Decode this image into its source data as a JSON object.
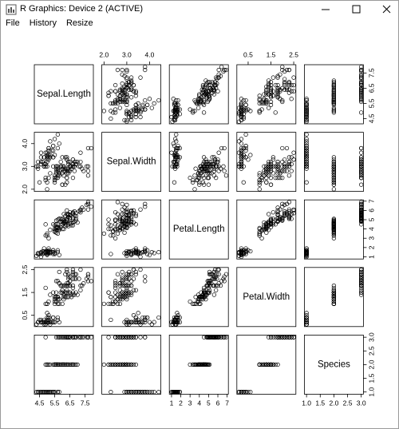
{
  "window": {
    "title": "R Graphics: Device 2 (ACTIVE)",
    "menu": [
      "File",
      "History",
      "Resize"
    ]
  },
  "chart_data": {
    "type": "scatter-matrix",
    "color": "#000000",
    "variables": [
      {
        "name": "Sepal.Length",
        "lim": [
          4.156,
          8.044
        ],
        "ticks": [
          4.5,
          5.5,
          6.5,
          7.5
        ],
        "values": [
          5.1,
          4.9,
          4.7,
          4.6,
          5.0,
          5.4,
          4.6,
          5.0,
          4.4,
          4.9,
          5.4,
          4.8,
          4.8,
          4.3,
          5.8,
          5.7,
          5.4,
          5.1,
          5.7,
          5.1,
          5.4,
          5.1,
          4.6,
          5.1,
          4.8,
          5.0,
          5.0,
          5.2,
          5.2,
          4.7,
          4.8,
          5.4,
          5.2,
          5.5,
          4.9,
          5.0,
          5.5,
          4.9,
          4.4,
          5.1,
          5.0,
          4.5,
          4.4,
          5.0,
          5.1,
          4.8,
          5.1,
          4.6,
          5.3,
          5.0,
          7.0,
          6.4,
          6.9,
          5.5,
          6.5,
          5.7,
          6.3,
          4.9,
          6.6,
          5.2,
          5.0,
          5.9,
          6.0,
          6.1,
          5.6,
          6.7,
          5.6,
          5.8,
          6.2,
          5.6,
          5.9,
          6.1,
          6.3,
          6.1,
          6.4,
          6.6,
          6.8,
          6.7,
          6.0,
          5.7,
          5.5,
          5.5,
          5.8,
          6.0,
          5.4,
          6.0,
          6.7,
          6.3,
          5.6,
          5.5,
          5.5,
          6.1,
          5.8,
          5.0,
          5.6,
          5.7,
          5.7,
          6.2,
          5.1,
          5.7,
          6.3,
          5.8,
          7.1,
          6.3,
          6.5,
          7.6,
          4.9,
          7.3,
          6.7,
          7.2,
          6.5,
          6.4,
          6.8,
          5.7,
          5.8,
          6.4,
          6.5,
          7.7,
          7.7,
          6.0,
          6.9,
          5.6,
          7.7,
          6.3,
          6.7,
          7.2,
          6.2,
          6.1,
          6.4,
          7.2,
          7.4,
          7.9,
          6.4,
          6.3,
          6.1,
          7.7,
          6.3,
          6.4,
          6.0,
          6.9,
          6.7,
          6.9,
          5.8,
          6.8,
          6.7,
          6.7,
          6.3,
          6.5,
          6.2,
          5.9
        ]
      },
      {
        "name": "Sepal.Width",
        "lim": [
          1.904,
          4.496
        ],
        "ticks": [
          {
            "value": 2,
            "label": "2.0"
          },
          {
            "value": 3,
            "label": "3.0"
          },
          {
            "value": 4,
            "label": "4.0"
          }
        ],
        "values": [
          3.5,
          3.0,
          3.2,
          3.1,
          3.6,
          3.9,
          3.4,
          3.4,
          2.9,
          3.1,
          3.7,
          3.4,
          3.0,
          3.0,
          4.0,
          4.4,
          3.9,
          3.5,
          3.8,
          3.8,
          3.4,
          3.7,
          3.6,
          3.3,
          3.4,
          3.0,
          3.4,
          3.5,
          3.4,
          3.2,
          3.1,
          3.4,
          4.1,
          4.2,
          3.1,
          3.2,
          3.5,
          3.6,
          3.0,
          3.4,
          3.5,
          2.3,
          3.2,
          3.5,
          3.8,
          3.0,
          3.8,
          3.2,
          3.7,
          3.3,
          3.2,
          3.2,
          3.1,
          2.3,
          2.8,
          2.8,
          3.3,
          2.4,
          2.9,
          2.7,
          2.0,
          3.0,
          2.2,
          2.9,
          2.9,
          3.1,
          3.0,
          2.7,
          2.2,
          2.5,
          3.2,
          2.8,
          2.5,
          2.8,
          2.9,
          3.0,
          2.8,
          3.0,
          2.9,
          2.6,
          2.4,
          2.4,
          2.7,
          2.7,
          3.0,
          3.4,
          3.1,
          2.3,
          3.0,
          2.5,
          2.6,
          3.0,
          2.6,
          2.3,
          2.7,
          3.0,
          2.9,
          2.9,
          2.5,
          2.8,
          3.3,
          2.7,
          3.0,
          2.9,
          3.0,
          3.0,
          2.5,
          2.9,
          2.5,
          3.6,
          3.2,
          2.7,
          3.0,
          2.5,
          2.8,
          3.2,
          3.0,
          3.8,
          2.6,
          2.2,
          3.2,
          2.8,
          2.8,
          2.7,
          3.3,
          3.2,
          2.8,
          3.0,
          2.8,
          3.0,
          2.8,
          3.8,
          2.8,
          2.8,
          2.6,
          3.0,
          3.4,
          3.1,
          3.0,
          3.1,
          3.1,
          3.1,
          2.7,
          3.2,
          3.3,
          3.0,
          2.5,
          3.0,
          3.4,
          3.0
        ]
      },
      {
        "name": "Petal.Length",
        "lim": [
          0.764,
          7.136
        ],
        "ticks": [
          1,
          2,
          3,
          4,
          5,
          6,
          7
        ],
        "values": [
          1.4,
          1.4,
          1.3,
          1.5,
          1.4,
          1.7,
          1.4,
          1.5,
          1.4,
          1.5,
          1.5,
          1.6,
          1.4,
          1.1,
          1.2,
          1.5,
          1.3,
          1.4,
          1.7,
          1.5,
          1.7,
          1.5,
          1.0,
          1.7,
          1.9,
          1.6,
          1.6,
          1.5,
          1.4,
          1.6,
          1.6,
          1.5,
          1.5,
          1.4,
          1.5,
          1.2,
          1.3,
          1.4,
          1.3,
          1.5,
          1.3,
          1.3,
          1.3,
          1.6,
          1.9,
          1.4,
          1.6,
          1.4,
          1.5,
          1.4,
          4.7,
          4.5,
          4.9,
          4.0,
          4.6,
          4.5,
          4.7,
          3.3,
          4.6,
          3.9,
          3.5,
          4.2,
          4.0,
          4.7,
          3.6,
          4.4,
          4.5,
          4.1,
          4.5,
          3.9,
          4.8,
          4.0,
          4.9,
          4.7,
          4.3,
          4.4,
          4.8,
          5.0,
          4.5,
          3.5,
          3.8,
          3.7,
          3.9,
          5.1,
          4.5,
          4.5,
          4.7,
          4.4,
          4.1,
          4.0,
          4.4,
          4.6,
          4.0,
          3.3,
          4.2,
          4.2,
          4.2,
          4.3,
          3.0,
          4.1,
          6.0,
          5.1,
          5.9,
          5.6,
          5.8,
          6.6,
          4.5,
          6.3,
          5.8,
          6.1,
          5.1,
          5.3,
          5.5,
          5.0,
          5.1,
          5.3,
          5.5,
          6.7,
          6.9,
          5.0,
          5.7,
          4.9,
          6.7,
          4.9,
          5.7,
          6.0,
          4.8,
          4.9,
          5.6,
          5.8,
          6.1,
          6.4,
          5.6,
          5.1,
          5.6,
          6.1,
          5.6,
          5.5,
          4.8,
          5.4,
          5.6,
          5.1,
          5.1,
          5.9,
          5.7,
          5.2,
          5.0,
          5.2,
          5.4,
          5.1
        ]
      },
      {
        "name": "Petal.Width",
        "lim": [
          0.004,
          2.596
        ],
        "ticks": [
          0.5,
          1.5,
          2.5
        ],
        "values": [
          0.2,
          0.2,
          0.2,
          0.2,
          0.2,
          0.4,
          0.3,
          0.2,
          0.2,
          0.1,
          0.2,
          0.2,
          0.1,
          0.1,
          0.2,
          0.4,
          0.4,
          0.3,
          0.3,
          0.3,
          0.2,
          0.4,
          0.2,
          0.5,
          0.2,
          0.2,
          0.4,
          0.2,
          0.2,
          0.2,
          0.2,
          0.4,
          0.1,
          0.2,
          0.2,
          0.2,
          0.2,
          0.1,
          0.2,
          0.2,
          0.3,
          0.3,
          0.2,
          0.6,
          0.4,
          0.3,
          0.2,
          0.2,
          0.2,
          0.2,
          1.4,
          1.5,
          1.5,
          1.3,
          1.5,
          1.3,
          1.6,
          1.0,
          1.3,
          1.4,
          1.0,
          1.5,
          1.0,
          1.4,
          1.3,
          1.4,
          1.5,
          1.0,
          1.5,
          1.1,
          1.8,
          1.3,
          1.5,
          1.2,
          1.3,
          1.4,
          1.4,
          1.7,
          1.5,
          1.0,
          1.1,
          1.0,
          1.2,
          1.6,
          1.5,
          1.6,
          1.5,
          1.3,
          1.3,
          1.3,
          1.2,
          1.4,
          1.2,
          1.0,
          1.3,
          1.2,
          1.3,
          1.3,
          1.1,
          1.3,
          2.5,
          1.9,
          2.1,
          1.8,
          2.2,
          2.1,
          1.7,
          1.8,
          1.8,
          2.5,
          2.0,
          1.9,
          2.1,
          2.0,
          2.4,
          2.3,
          1.8,
          2.2,
          2.3,
          1.5,
          2.3,
          2.0,
          2.0,
          1.8,
          2.1,
          1.8,
          1.8,
          1.8,
          2.1,
          1.6,
          1.9,
          2.0,
          2.2,
          1.5,
          1.4,
          2.3,
          2.4,
          1.8,
          1.8,
          2.1,
          2.4,
          2.3,
          1.9,
          2.3,
          2.5,
          2.3,
          1.9,
          2.0,
          2.3,
          1.8
        ]
      },
      {
        "name": "Species",
        "lim": [
          0.92,
          3.08
        ],
        "ticks": [
          {
            "value": 1,
            "label": "1.0"
          },
          1.5,
          {
            "value": 2,
            "label": "2.0"
          },
          2.5,
          {
            "value": 3,
            "label": "3.0"
          }
        ],
        "values": [
          1,
          1,
          1,
          1,
          1,
          1,
          1,
          1,
          1,
          1,
          1,
          1,
          1,
          1,
          1,
          1,
          1,
          1,
          1,
          1,
          1,
          1,
          1,
          1,
          1,
          1,
          1,
          1,
          1,
          1,
          1,
          1,
          1,
          1,
          1,
          1,
          1,
          1,
          1,
          1,
          1,
          1,
          1,
          1,
          1,
          1,
          1,
          1,
          1,
          1,
          2,
          2,
          2,
          2,
          2,
          2,
          2,
          2,
          2,
          2,
          2,
          2,
          2,
          2,
          2,
          2,
          2,
          2,
          2,
          2,
          2,
          2,
          2,
          2,
          2,
          2,
          2,
          2,
          2,
          2,
          2,
          2,
          2,
          2,
          2,
          2,
          2,
          2,
          2,
          2,
          2,
          2,
          2,
          2,
          2,
          2,
          2,
          2,
          2,
          2,
          3,
          3,
          3,
          3,
          3,
          3,
          3,
          3,
          3,
          3,
          3,
          3,
          3,
          3,
          3,
          3,
          3,
          3,
          3,
          3,
          3,
          3,
          3,
          3,
          3,
          3,
          3,
          3,
          3,
          3,
          3,
          3,
          3,
          3,
          3,
          3,
          3,
          3,
          3,
          3,
          3,
          3,
          3,
          3,
          3,
          3,
          3,
          3,
          3,
          3
        ]
      }
    ]
  }
}
